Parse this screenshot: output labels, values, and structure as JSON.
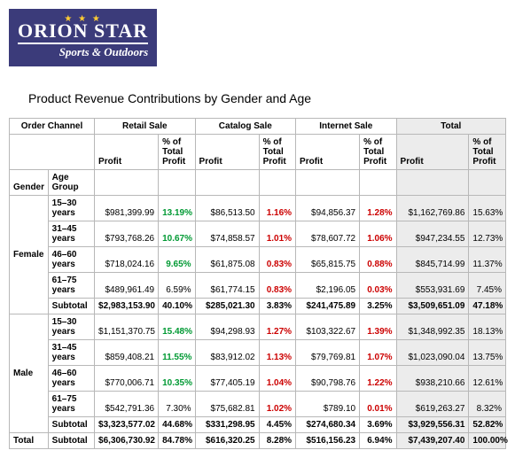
{
  "logo": {
    "brand": "ORION STAR",
    "tagline": "Sports & Outdoors",
    "bg_color": "#3b3b7a",
    "star_color": "#ffcc33"
  },
  "title": "Product Revenue Contributions by Gender and Age",
  "channel_header": "Order Channel",
  "channels": [
    "Retail Sale",
    "Catalog Sale",
    "Internet Sale",
    "Total"
  ],
  "subcols": {
    "profit": "Profit",
    "pct": "% of Total Profit"
  },
  "row_headers": {
    "gender": "Gender",
    "age": "Age Group"
  },
  "genders": [
    {
      "label": "Female",
      "rows": [
        {
          "age": "15–30 years",
          "cells": [
            {
              "v": "$981,399.99"
            },
            {
              "v": "13.19%",
              "cls": "green"
            },
            {
              "v": "$86,513.50"
            },
            {
              "v": "1.16%",
              "cls": "red"
            },
            {
              "v": "$94,856.37"
            },
            {
              "v": "1.28%",
              "cls": "red"
            },
            {
              "v": "$1,162,769.86",
              "tc": true
            },
            {
              "v": "15.63%",
              "tc": true
            }
          ]
        },
        {
          "age": "31–45 years",
          "cells": [
            {
              "v": "$793,768.26"
            },
            {
              "v": "10.67%",
              "cls": "green"
            },
            {
              "v": "$74,858.57"
            },
            {
              "v": "1.01%",
              "cls": "red"
            },
            {
              "v": "$78,607.72"
            },
            {
              "v": "1.06%",
              "cls": "red"
            },
            {
              "v": "$947,234.55",
              "tc": true
            },
            {
              "v": "12.73%",
              "tc": true
            }
          ]
        },
        {
          "age": "46–60 years",
          "cells": [
            {
              "v": "$718,024.16"
            },
            {
              "v": "9.65%",
              "cls": "green"
            },
            {
              "v": "$61,875.08"
            },
            {
              "v": "0.83%",
              "cls": "red"
            },
            {
              "v": "$65,815.75"
            },
            {
              "v": "0.88%",
              "cls": "red"
            },
            {
              "v": "$845,714.99",
              "tc": true
            },
            {
              "v": "11.37%",
              "tc": true
            }
          ]
        },
        {
          "age": "61–75 years",
          "cells": [
            {
              "v": "$489,961.49"
            },
            {
              "v": "6.59%"
            },
            {
              "v": "$61,774.15"
            },
            {
              "v": "0.83%",
              "cls": "red"
            },
            {
              "v": "$2,196.05"
            },
            {
              "v": "0.03%",
              "cls": "red"
            },
            {
              "v": "$553,931.69",
              "tc": true
            },
            {
              "v": "7.45%",
              "tc": true
            }
          ]
        }
      ],
      "subtotal": {
        "label": "Subtotal",
        "cells": [
          {
            "v": "$2,983,153.90"
          },
          {
            "v": "40.10%"
          },
          {
            "v": "$285,021.30"
          },
          {
            "v": "3.83%"
          },
          {
            "v": "$241,475.89"
          },
          {
            "v": "3.25%"
          },
          {
            "v": "$3,509,651.09",
            "tc": true
          },
          {
            "v": "47.18%",
            "tc": true
          }
        ]
      }
    },
    {
      "label": "Male",
      "rows": [
        {
          "age": "15–30 years",
          "cells": [
            {
              "v": "$1,151,370.75"
            },
            {
              "v": "15.48%",
              "cls": "green"
            },
            {
              "v": "$94,298.93"
            },
            {
              "v": "1.27%",
              "cls": "red"
            },
            {
              "v": "$103,322.67"
            },
            {
              "v": "1.39%",
              "cls": "red"
            },
            {
              "v": "$1,348,992.35",
              "tc": true
            },
            {
              "v": "18.13%",
              "tc": true
            }
          ]
        },
        {
          "age": "31–45 years",
          "cells": [
            {
              "v": "$859,408.21"
            },
            {
              "v": "11.55%",
              "cls": "green"
            },
            {
              "v": "$83,912.02"
            },
            {
              "v": "1.13%",
              "cls": "red"
            },
            {
              "v": "$79,769.81"
            },
            {
              "v": "1.07%",
              "cls": "red"
            },
            {
              "v": "$1,023,090.04",
              "tc": true
            },
            {
              "v": "13.75%",
              "tc": true
            }
          ]
        },
        {
          "age": "46–60 years",
          "cells": [
            {
              "v": "$770,006.71"
            },
            {
              "v": "10.35%",
              "cls": "green"
            },
            {
              "v": "$77,405.19"
            },
            {
              "v": "1.04%",
              "cls": "red"
            },
            {
              "v": "$90,798.76"
            },
            {
              "v": "1.22%",
              "cls": "red"
            },
            {
              "v": "$938,210.66",
              "tc": true
            },
            {
              "v": "12.61%",
              "tc": true
            }
          ]
        },
        {
          "age": "61–75 years",
          "cells": [
            {
              "v": "$542,791.36"
            },
            {
              "v": "7.30%"
            },
            {
              "v": "$75,682.81"
            },
            {
              "v": "1.02%",
              "cls": "red"
            },
            {
              "v": "$789.10"
            },
            {
              "v": "0.01%",
              "cls": "red"
            },
            {
              "v": "$619,263.27",
              "tc": true
            },
            {
              "v": "8.32%",
              "tc": true
            }
          ]
        }
      ],
      "subtotal": {
        "label": "Subtotal",
        "cells": [
          {
            "v": "$3,323,577.02"
          },
          {
            "v": "44.68%"
          },
          {
            "v": "$331,298.95"
          },
          {
            "v": "4.45%"
          },
          {
            "v": "$274,680.34"
          },
          {
            "v": "3.69%"
          },
          {
            "v": "$3,929,556.31",
            "tc": true
          },
          {
            "v": "52.82%",
            "tc": true
          }
        ]
      }
    }
  ],
  "grand_total": {
    "label": "Total",
    "sub": "Subtotal",
    "cells": [
      {
        "v": "$6,306,730.92"
      },
      {
        "v": "84.78%"
      },
      {
        "v": "$616,320.25"
      },
      {
        "v": "8.28%"
      },
      {
        "v": "$516,156.23"
      },
      {
        "v": "6.94%"
      },
      {
        "v": "$7,439,207.40",
        "tc": true
      },
      {
        "v": "100.00%",
        "tc": true
      }
    ]
  }
}
